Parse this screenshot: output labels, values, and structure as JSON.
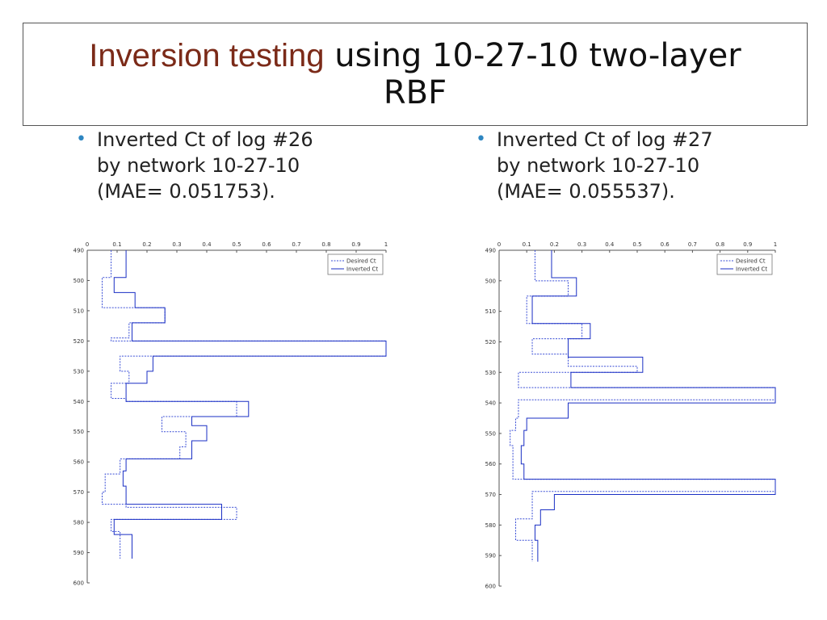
{
  "title": {
    "highlight": "Inversion testing",
    "rest": " using 10-27-10 two-layer",
    "line2": "RBF"
  },
  "bullets": [
    {
      "lines": [
        "Inverted Ct of log #26",
        "by network 10-27-10",
        "(MAE= 0.051753)."
      ]
    },
    {
      "lines": [
        "Inverted Ct of log #27",
        "by network 10-27-10",
        "(MAE= 0.055537)."
      ]
    }
  ],
  "colors": {
    "desired": "#3b4fd6",
    "inverted": "#1a2fc4",
    "bullet": "#2e86c1",
    "title_highlight": "#7b2a18"
  },
  "chart_data": [
    {
      "type": "line",
      "x_axis": {
        "range": [
          0,
          1
        ],
        "ticks": [
          "0",
          "0.1",
          "0.2",
          "0.3",
          "0.4",
          "0.5",
          "0.6",
          "0.7",
          "0.8",
          "0.9",
          "1"
        ],
        "position": "top"
      },
      "y_axis": {
        "range": [
          490,
          600
        ],
        "ticks": [
          "490",
          "500",
          "510",
          "520",
          "530",
          "540",
          "550",
          "560",
          "570",
          "580",
          "590",
          "600"
        ],
        "inverted": true
      },
      "legend": {
        "position": "top-right",
        "entries": [
          "Desired Ct",
          "Inverted Ct"
        ]
      },
      "series": [
        {
          "name": "Desired Ct",
          "style": "dotted",
          "steps": [
            [
              490,
              0.08
            ],
            [
              499,
              0.05
            ],
            [
              509,
              0.26
            ],
            [
              514,
              0.14
            ],
            [
              519,
              0.08
            ],
            [
              520,
              1.0
            ],
            [
              524,
              1.0
            ],
            [
              525,
              0.11
            ],
            [
              530,
              0.14
            ],
            [
              534,
              0.08
            ],
            [
              539,
              0.13
            ],
            [
              540,
              0.5
            ],
            [
              545,
              0.25
            ],
            [
              550,
              0.33
            ],
            [
              555,
              0.31
            ],
            [
              559,
              0.11
            ],
            [
              564,
              0.06
            ],
            [
              570,
              0.05
            ],
            [
              574,
              0.13
            ],
            [
              575,
              0.5
            ],
            [
              579,
              0.08
            ],
            [
              583,
              0.11
            ],
            [
              590,
              0.11
            ]
          ]
        },
        {
          "name": "Inverted Ct",
          "style": "solid",
          "steps": [
            [
              490,
              0.13
            ],
            [
              499,
              0.09
            ],
            [
              504,
              0.16
            ],
            [
              509,
              0.26
            ],
            [
              514,
              0.15
            ],
            [
              520,
              1.0
            ],
            [
              525,
              0.22
            ],
            [
              530,
              0.2
            ],
            [
              534,
              0.13
            ],
            [
              540,
              0.54
            ],
            [
              545,
              0.35
            ],
            [
              548,
              0.4
            ],
            [
              553,
              0.35
            ],
            [
              559,
              0.13
            ],
            [
              563,
              0.12
            ],
            [
              568,
              0.13
            ],
            [
              574,
              0.45
            ],
            [
              579,
              0.09
            ],
            [
              584,
              0.15
            ],
            [
              590,
              0.15
            ]
          ]
        }
      ]
    },
    {
      "type": "line",
      "x_axis": {
        "range": [
          0,
          1
        ],
        "ticks": [
          "0",
          "0.1",
          "0.2",
          "0.3",
          "0.4",
          "0.5",
          "0.6",
          "0.7",
          "0.8",
          "0.9",
          "1"
        ],
        "position": "top"
      },
      "y_axis": {
        "range": [
          490,
          600
        ],
        "ticks": [
          "490",
          "500",
          "510",
          "520",
          "530",
          "540",
          "550",
          "560",
          "570",
          "580",
          "590",
          "600"
        ],
        "inverted": true
      },
      "legend": {
        "position": "top-right",
        "entries": [
          "Desired Ct",
          "Inverted Ct"
        ]
      },
      "series": [
        {
          "name": "Desired Ct",
          "style": "dotted",
          "steps": [
            [
              490,
              0.13
            ],
            [
              500,
              0.25
            ],
            [
              505,
              0.1
            ],
            [
              509,
              0.1
            ],
            [
              514,
              0.3
            ],
            [
              519,
              0.12
            ],
            [
              524,
              0.25
            ],
            [
              528,
              0.5
            ],
            [
              530,
              0.07
            ],
            [
              535,
              1.0
            ],
            [
              539,
              0.07
            ],
            [
              545,
              0.06
            ],
            [
              549,
              0.04
            ],
            [
              554,
              0.05
            ],
            [
              560,
              0.05
            ],
            [
              565,
              1.0
            ],
            [
              569,
              0.12
            ],
            [
              575,
              0.12
            ],
            [
              578,
              0.06
            ],
            [
              585,
              0.12
            ],
            [
              590,
              0.12
            ]
          ]
        },
        {
          "name": "Inverted Ct",
          "style": "solid",
          "steps": [
            [
              490,
              0.19
            ],
            [
              499,
              0.28
            ],
            [
              505,
              0.12
            ],
            [
              509,
              0.12
            ],
            [
              514,
              0.33
            ],
            [
              519,
              0.25
            ],
            [
              525,
              0.52
            ],
            [
              530,
              0.26
            ],
            [
              535,
              1.0
            ],
            [
              540,
              0.25
            ],
            [
              545,
              0.1
            ],
            [
              549,
              0.09
            ],
            [
              554,
              0.08
            ],
            [
              560,
              0.09
            ],
            [
              565,
              1.0
            ],
            [
              570,
              0.2
            ],
            [
              575,
              0.15
            ],
            [
              580,
              0.13
            ],
            [
              585,
              0.14
            ],
            [
              590,
              0.14
            ]
          ]
        }
      ]
    }
  ]
}
